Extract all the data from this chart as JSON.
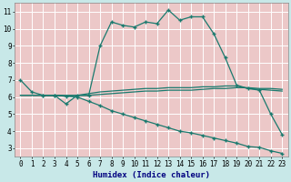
{
  "title": "",
  "xlabel": "Humidex (Indice chaleur)",
  "ylabel": "",
  "xlim": [
    -0.5,
    23.5
  ],
  "ylim": [
    2.5,
    11.5
  ],
  "xticks": [
    0,
    1,
    2,
    3,
    4,
    5,
    6,
    7,
    8,
    9,
    10,
    11,
    12,
    13,
    14,
    15,
    16,
    17,
    18,
    19,
    20,
    21,
    22,
    23
  ],
  "yticks": [
    3,
    4,
    5,
    6,
    7,
    8,
    9,
    10,
    11
  ],
  "line_color": "#1a7a6e",
  "bg_color": "#c8e8e8",
  "plot_bg": "#ecc8c8",
  "grid_color": "#ffffff",
  "lines": [
    {
      "x": [
        0,
        1,
        2,
        3,
        4,
        5,
        6,
        7,
        8,
        9,
        10,
        11,
        12,
        13,
        14,
        15,
        16,
        17,
        18,
        19,
        20,
        21,
        22,
        23
      ],
      "y": [
        7.0,
        6.3,
        6.1,
        6.1,
        5.6,
        6.1,
        6.1,
        9.0,
        10.4,
        10.2,
        10.1,
        10.4,
        10.3,
        11.1,
        10.5,
        10.7,
        10.7,
        9.7,
        8.3,
        6.7,
        6.5,
        6.4,
        5.0,
        3.8
      ],
      "marker": "+"
    },
    {
      "x": [
        0,
        1,
        2,
        3,
        4,
        5,
        6,
        7,
        8,
        9,
        10,
        11,
        12,
        13,
        14,
        15,
        16,
        17,
        18,
        19,
        20,
        21,
        22,
        23
      ],
      "y": [
        6.1,
        6.1,
        6.1,
        6.1,
        6.1,
        6.1,
        6.2,
        6.3,
        6.35,
        6.4,
        6.45,
        6.5,
        6.5,
        6.55,
        6.55,
        6.55,
        6.6,
        6.6,
        6.65,
        6.65,
        6.5,
        6.45,
        6.4,
        6.35
      ],
      "marker": null
    },
    {
      "x": [
        0,
        1,
        2,
        3,
        4,
        5,
        6,
        7,
        8,
        9,
        10,
        11,
        12,
        13,
        14,
        15,
        16,
        17,
        18,
        19,
        20,
        21,
        22,
        23
      ],
      "y": [
        6.1,
        6.1,
        6.1,
        6.1,
        6.05,
        6.1,
        6.1,
        6.15,
        6.2,
        6.25,
        6.3,
        6.35,
        6.35,
        6.4,
        6.4,
        6.4,
        6.45,
        6.5,
        6.5,
        6.55,
        6.55,
        6.5,
        6.5,
        6.45
      ],
      "marker": null
    },
    {
      "x": [
        2,
        3,
        4,
        5,
        6,
        7,
        8,
        9,
        10,
        11,
        12,
        13,
        14,
        15,
        16,
        17,
        18,
        19,
        20,
        21,
        22,
        23
      ],
      "y": [
        6.1,
        6.1,
        6.05,
        6.0,
        5.75,
        5.5,
        5.2,
        5.0,
        4.8,
        4.6,
        4.4,
        4.2,
        4.0,
        3.9,
        3.75,
        3.6,
        3.45,
        3.3,
        3.1,
        3.05,
        2.85,
        2.7
      ],
      "marker": "+"
    }
  ]
}
